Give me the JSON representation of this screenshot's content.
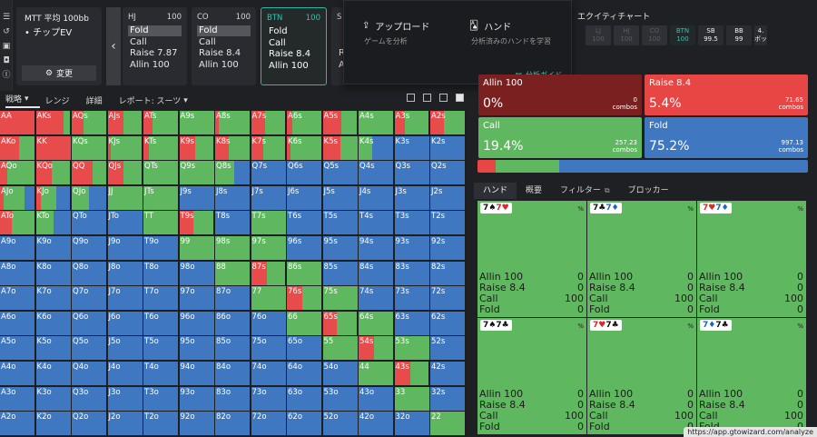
{
  "game": {
    "title": "MTT 平均 100bb",
    "mode": "• チップEV",
    "change_label": "変更"
  },
  "positions": [
    {
      "name": "HJ",
      "stack": "100",
      "actions": [
        "Fold",
        "Call",
        "Raise 7.87",
        "Allin 100"
      ],
      "selected": 0
    },
    {
      "name": "CO",
      "stack": "100",
      "actions": [
        "Fold",
        "Call",
        "Raise 8.4",
        "Allin 100"
      ],
      "selected": 0
    },
    {
      "name": "BTN",
      "stack": "100",
      "actions": [
        "Fold",
        "Call",
        "Raise 8.4",
        "Allin 100"
      ],
      "selected": -1
    },
    {
      "name": "S",
      "stack": "",
      "actions": [
        "",
        "",
        "R",
        "A"
      ],
      "selected": -1
    }
  ],
  "popup": {
    "upload_title": "アップロード",
    "upload_sub": "ゲームを分析",
    "hands_title": "ハンド",
    "hands_sub": "分析済みのハンドを学習",
    "guide": "分析ガイド"
  },
  "equity": {
    "title": "エクイティチャート",
    "seats": [
      {
        "name": "LJ",
        "stack": "100",
        "state": "inactive"
      },
      {
        "name": "HJ",
        "stack": "100",
        "state": "inactive"
      },
      {
        "name": "CO",
        "stack": "100",
        "state": "inactive"
      },
      {
        "name": "BTN",
        "stack": "100",
        "state": "hero"
      },
      {
        "name": "SB",
        "stack": "99.5",
        "state": "active"
      },
      {
        "name": "BB",
        "stack": "99",
        "state": "active"
      },
      {
        "name": "4.",
        "stack": "ボッ",
        "state": "active"
      }
    ]
  },
  "strategy_tabs": [
    "戦略",
    "レンジ",
    "詳細",
    "レポート: スーツ"
  ],
  "colors": {
    "allin": "#7a1e1e",
    "raise": "#e84b4b",
    "call": "#5fb85f",
    "fold": "#3f78c0",
    "accent": "#2fc7ad"
  },
  "summary": [
    {
      "name": "Allin 100",
      "pct": "0%",
      "combos": "0",
      "unit": "combos",
      "color": "#7a2020"
    },
    {
      "name": "Raise 8.4",
      "pct": "5.4%",
      "combos": "71.65",
      "unit": "combos",
      "color": "#e84545"
    },
    {
      "name": "Call",
      "pct": "19.4%",
      "combos": "257.23",
      "unit": "combos",
      "color": "#5fb85f"
    },
    {
      "name": "Fold",
      "pct": "75.2%",
      "combos": "997.13",
      "unit": "combos",
      "color": "#3f78c0"
    }
  ],
  "summary_bar": [
    {
      "value": 5.4,
      "color": "#e84545"
    },
    {
      "value": 19.4,
      "color": "#5fb85f"
    },
    {
      "value": 75.2,
      "color": "#3f78c0"
    }
  ],
  "right_tabs": [
    "ハンド",
    "概要",
    "フィルター",
    "ブロッカー"
  ],
  "combos": [
    {
      "cards": [
        [
          "7",
          "♠",
          "blk"
        ],
        [
          "7",
          "♥",
          "red"
        ]
      ],
      "pct": "%",
      "rows": [
        [
          "Allin 100",
          "0"
        ],
        [
          "Raise 8.4",
          "0"
        ],
        [
          "Call",
          "100"
        ],
        [
          "Fold",
          "0"
        ]
      ]
    },
    {
      "cards": [
        [
          "7",
          "♣",
          "blk"
        ],
        [
          "7",
          "♦",
          "blu"
        ]
      ],
      "pct": "%",
      "rows": [
        [
          "Allin 100",
          "0"
        ],
        [
          "Raise 8.4",
          "0"
        ],
        [
          "Call",
          "100"
        ],
        [
          "Fold",
          "0"
        ]
      ]
    },
    {
      "cards": [
        [
          "7",
          "♥",
          "red"
        ],
        [
          "7",
          "♦",
          "blu"
        ]
      ],
      "pct": "%",
      "rows": [
        [
          "Allin 100",
          "0"
        ],
        [
          "Raise 8.4",
          "0"
        ],
        [
          "Call",
          "100"
        ],
        [
          "Fold",
          "0"
        ]
      ]
    },
    {
      "cards": [
        [
          "7",
          "♠",
          "blk"
        ],
        [
          "7",
          "♣",
          "blk"
        ]
      ],
      "pct": "%",
      "rows": [
        [
          "Allin 100",
          "0"
        ],
        [
          "Raise 8.4",
          "0"
        ],
        [
          "Call",
          "100"
        ],
        [
          "Fold",
          "0"
        ]
      ]
    },
    {
      "cards": [
        [
          "7",
          "♥",
          "red"
        ],
        [
          "7",
          "♣",
          "blk"
        ]
      ],
      "pct": "%",
      "rows": [
        [
          "Allin 100",
          "0"
        ],
        [
          "Raise 8.4",
          "0"
        ],
        [
          "Call",
          "100"
        ],
        [
          "Fold",
          "0"
        ]
      ]
    },
    {
      "cards": [
        [
          "7",
          "♦",
          "blu"
        ],
        [
          "7",
          "♣",
          "blk"
        ]
      ],
      "pct": "%",
      "rows": [
        [
          "Allin 100",
          "0"
        ],
        [
          "Raise 8.4",
          "0"
        ],
        [
          "Call",
          "100"
        ],
        [
          "Fold",
          "0"
        ]
      ]
    }
  ],
  "url_tip": "https://app.gtowizard.com/analyze",
  "ranks": [
    "A",
    "K",
    "Q",
    "J",
    "T",
    "9",
    "8",
    "7",
    "6",
    "5",
    "4",
    "3",
    "2"
  ],
  "grid_freq": {
    "AA": [
      0,
      100,
      0,
      0
    ],
    "AKs": [
      0,
      80,
      20,
      0
    ],
    "AQs": [
      0,
      35,
      65,
      0
    ],
    "AJs": [
      0,
      45,
      55,
      0
    ],
    "ATs": [
      0,
      25,
      75,
      0
    ],
    "A9s": [
      0,
      0,
      100,
      0
    ],
    "A8s": [
      0,
      10,
      90,
      0
    ],
    "A7s": [
      0,
      40,
      60,
      0
    ],
    "A6s": [
      0,
      15,
      85,
      0
    ],
    "A5s": [
      0,
      55,
      45,
      0
    ],
    "A4s": [
      0,
      0,
      100,
      0
    ],
    "A3s": [
      0,
      30,
      70,
      0
    ],
    "A2s": [
      0,
      40,
      60,
      0
    ],
    "AKo": [
      0,
      55,
      45,
      0
    ],
    "KK": [
      0,
      100,
      0,
      0
    ],
    "KQs": [
      0,
      0,
      100,
      0
    ],
    "KJs": [
      0,
      10,
      90,
      0
    ],
    "KTs": [
      0,
      15,
      85,
      0
    ],
    "K9s": [
      0,
      45,
      55,
      0
    ],
    "K8s": [
      0,
      40,
      60,
      0
    ],
    "K7s": [
      0,
      35,
      65,
      0
    ],
    "K6s": [
      0,
      10,
      90,
      0
    ],
    "K5s": [
      0,
      50,
      50,
      0
    ],
    "K4s": [
      0,
      0,
      40,
      60
    ],
    "K3s": [
      0,
      0,
      0,
      100
    ],
    "K2s": [
      0,
      0,
      0,
      100
    ],
    "AQo": [
      0,
      20,
      80,
      0
    ],
    "KQo": [
      0,
      45,
      55,
      0
    ],
    "QQ": [
      0,
      60,
      40,
      0
    ],
    "QJs": [
      0,
      45,
      55,
      0
    ],
    "QTs": [
      0,
      0,
      100,
      0
    ],
    "Q9s": [
      0,
      0,
      100,
      0
    ],
    "Q8s": [
      0,
      0,
      55,
      45
    ],
    "Q7s": [
      0,
      0,
      0,
      100
    ],
    "Q6s": [
      0,
      0,
      0,
      100
    ],
    "Q5s": [
      0,
      0,
      0,
      100
    ],
    "Q4s": [
      0,
      0,
      0,
      100
    ],
    "Q3s": [
      0,
      0,
      0,
      100
    ],
    "Q2s": [
      0,
      0,
      0,
      100
    ],
    "AJo": [
      0,
      10,
      60,
      30
    ],
    "KJo": [
      0,
      15,
      45,
      40
    ],
    "QJo": [
      0,
      0,
      50,
      50
    ],
    "JJ": [
      0,
      0,
      100,
      0
    ],
    "JTs": [
      0,
      0,
      100,
      0
    ],
    "J9s": [
      0,
      0,
      0,
      100
    ],
    "J8s": [
      0,
      0,
      0,
      100
    ],
    "J7s": [
      0,
      0,
      0,
      100
    ],
    "J6s": [
      0,
      0,
      0,
      100
    ],
    "J5s": [
      0,
      0,
      0,
      100
    ],
    "J4s": [
      0,
      0,
      0,
      100
    ],
    "J3s": [
      0,
      0,
      0,
      100
    ],
    "J2s": [
      0,
      0,
      0,
      100
    ],
    "ATo": [
      0,
      35,
      65,
      0
    ],
    "KTo": [
      0,
      0,
      50,
      50
    ],
    "QTo": [
      0,
      0,
      0,
      100
    ],
    "JTo": [
      0,
      0,
      0,
      100
    ],
    "TT": [
      0,
      0,
      100,
      0
    ],
    "T9s": [
      0,
      40,
      60,
      0
    ],
    "T8s": [
      0,
      0,
      0,
      100
    ],
    "T7s": [
      0,
      0,
      100,
      0
    ],
    "T6s": [
      0,
      0,
      0,
      100
    ],
    "T5s": [
      0,
      0,
      0,
      100
    ],
    "T4s": [
      0,
      0,
      0,
      100
    ],
    "T3s": [
      0,
      0,
      0,
      100
    ],
    "T2s": [
      0,
      0,
      0,
      100
    ],
    "A9o": [
      0,
      0,
      0,
      100
    ],
    "K9o": [
      0,
      0,
      0,
      100
    ],
    "Q9o": [
      0,
      0,
      0,
      100
    ],
    "J9o": [
      0,
      0,
      0,
      100
    ],
    "T9o": [
      0,
      0,
      0,
      100
    ],
    "99": [
      0,
      0,
      100,
      0
    ],
    "98s": [
      0,
      0,
      100,
      0
    ],
    "97s": [
      0,
      0,
      100,
      0
    ],
    "96s": [
      0,
      0,
      0,
      100
    ],
    "95s": [
      0,
      0,
      0,
      100
    ],
    "94s": [
      0,
      0,
      0,
      100
    ],
    "93s": [
      0,
      0,
      0,
      100
    ],
    "92s": [
      0,
      0,
      0,
      100
    ],
    "A8o": [
      0,
      0,
      0,
      100
    ],
    "K8o": [
      0,
      0,
      0,
      100
    ],
    "Q8o": [
      0,
      0,
      0,
      100
    ],
    "J8o": [
      0,
      0,
      0,
      100
    ],
    "T8o": [
      0,
      0,
      0,
      100
    ],
    "98o": [
      0,
      0,
      0,
      100
    ],
    "88": [
      0,
      0,
      100,
      0
    ],
    "87s": [
      0,
      45,
      55,
      0
    ],
    "86s": [
      0,
      0,
      100,
      0
    ],
    "85s": [
      0,
      0,
      0,
      100
    ],
    "84s": [
      0,
      0,
      0,
      100
    ],
    "83s": [
      0,
      0,
      0,
      100
    ],
    "82s": [
      0,
      0,
      0,
      100
    ],
    "A7o": [
      0,
      0,
      0,
      100
    ],
    "K7o": [
      0,
      0,
      0,
      100
    ],
    "Q7o": [
      0,
      0,
      0,
      100
    ],
    "J7o": [
      0,
      0,
      0,
      100
    ],
    "T7o": [
      0,
      0,
      0,
      100
    ],
    "97o": [
      0,
      0,
      0,
      100
    ],
    "87o": [
      0,
      0,
      0,
      100
    ],
    "77": [
      0,
      0,
      100,
      0
    ],
    "76s": [
      0,
      45,
      55,
      0
    ],
    "75s": [
      0,
      0,
      100,
      0
    ],
    "74s": [
      0,
      0,
      0,
      100
    ],
    "73s": [
      0,
      0,
      0,
      100
    ],
    "72s": [
      0,
      0,
      0,
      100
    ],
    "A6o": [
      0,
      0,
      0,
      100
    ],
    "K6o": [
      0,
      0,
      0,
      100
    ],
    "Q6o": [
      0,
      0,
      0,
      100
    ],
    "J6o": [
      0,
      0,
      0,
      100
    ],
    "T6o": [
      0,
      0,
      0,
      100
    ],
    "96o": [
      0,
      0,
      0,
      100
    ],
    "86o": [
      0,
      0,
      0,
      100
    ],
    "76o": [
      0,
      0,
      0,
      100
    ],
    "66": [
      0,
      0,
      100,
      0
    ],
    "65s": [
      0,
      40,
      60,
      0
    ],
    "64s": [
      0,
      0,
      100,
      0
    ],
    "63s": [
      0,
      0,
      0,
      100
    ],
    "62s": [
      0,
      0,
      0,
      100
    ],
    "A5o": [
      0,
      0,
      0,
      100
    ],
    "K5o": [
      0,
      0,
      0,
      100
    ],
    "Q5o": [
      0,
      0,
      0,
      100
    ],
    "J5o": [
      0,
      0,
      0,
      100
    ],
    "T5o": [
      0,
      0,
      0,
      100
    ],
    "95o": [
      0,
      0,
      0,
      100
    ],
    "85o": [
      0,
      0,
      0,
      100
    ],
    "75o": [
      0,
      0,
      0,
      100
    ],
    "65o": [
      0,
      0,
      0,
      100
    ],
    "55": [
      0,
      0,
      100,
      0
    ],
    "54s": [
      0,
      45,
      55,
      0
    ],
    "53s": [
      0,
      0,
      100,
      0
    ],
    "52s": [
      0,
      0,
      0,
      100
    ],
    "A4o": [
      0,
      0,
      0,
      100
    ],
    "K4o": [
      0,
      0,
      0,
      100
    ],
    "Q4o": [
      0,
      0,
      0,
      100
    ],
    "J4o": [
      0,
      0,
      0,
      100
    ],
    "T4o": [
      0,
      0,
      0,
      100
    ],
    "94o": [
      0,
      0,
      0,
      100
    ],
    "84o": [
      0,
      0,
      0,
      100
    ],
    "74o": [
      0,
      0,
      0,
      100
    ],
    "64o": [
      0,
      0,
      0,
      100
    ],
    "54o": [
      0,
      0,
      0,
      100
    ],
    "44": [
      0,
      0,
      100,
      0
    ],
    "43s": [
      0,
      45,
      55,
      0
    ],
    "42s": [
      0,
      0,
      0,
      100
    ],
    "A3o": [
      0,
      0,
      0,
      100
    ],
    "K3o": [
      0,
      0,
      0,
      100
    ],
    "Q3o": [
      0,
      0,
      0,
      100
    ],
    "J3o": [
      0,
      0,
      0,
      100
    ],
    "T3o": [
      0,
      0,
      0,
      100
    ],
    "93o": [
      0,
      0,
      0,
      100
    ],
    "83o": [
      0,
      0,
      0,
      100
    ],
    "73o": [
      0,
      0,
      0,
      100
    ],
    "63o": [
      0,
      0,
      0,
      100
    ],
    "53o": [
      0,
      0,
      0,
      100
    ],
    "43o": [
      0,
      0,
      0,
      100
    ],
    "33": [
      0,
      0,
      100,
      0
    ],
    "32s": [
      0,
      0,
      0,
      100
    ],
    "A2o": [
      0,
      0,
      0,
      100
    ],
    "K2o": [
      0,
      0,
      0,
      100
    ],
    "Q2o": [
      0,
      0,
      0,
      100
    ],
    "J2o": [
      0,
      0,
      0,
      100
    ],
    "T2o": [
      0,
      0,
      0,
      100
    ],
    "92o": [
      0,
      0,
      0,
      100
    ],
    "82o": [
      0,
      0,
      0,
      100
    ],
    "72o": [
      0,
      0,
      0,
      100
    ],
    "62o": [
      0,
      0,
      0,
      100
    ],
    "52o": [
      0,
      0,
      0,
      100
    ],
    "42o": [
      0,
      0,
      0,
      100
    ],
    "32o": [
      0,
      0,
      0,
      100
    ],
    "22": [
      0,
      0,
      100,
      0
    ]
  }
}
